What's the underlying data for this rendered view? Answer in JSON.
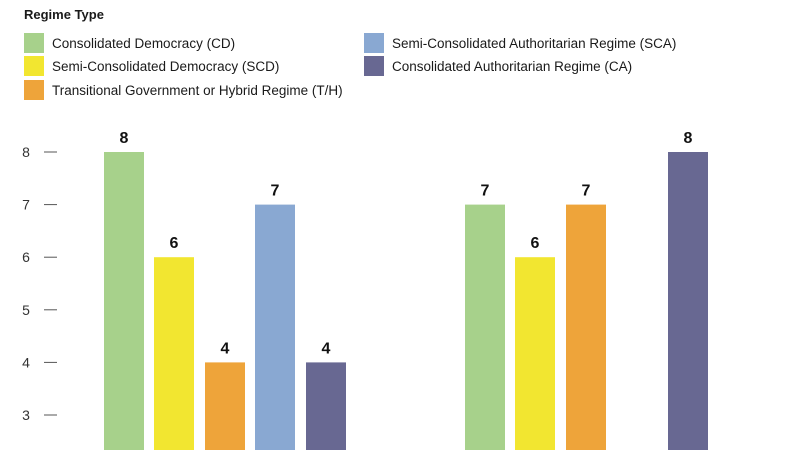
{
  "legend": {
    "title": "Regime Type",
    "items": [
      {
        "label": "Consolidated Democracy (CD)",
        "color": "#a7d18b"
      },
      {
        "label": "Semi-Consolidated Democracy (SCD)",
        "color": "#f2e630"
      },
      {
        "label": "Transitional Government or Hybrid Regime (T/H)",
        "color": "#eea43a"
      },
      {
        "label": "Semi-Consolidated Authoritarian Regime (SCA)",
        "color": "#89a8d2"
      },
      {
        "label": "Consolidated Authoritarian Regime (CA)",
        "color": "#686892"
      }
    ]
  },
  "chart_data": {
    "type": "bar",
    "ylim": [
      2.3,
      8
    ],
    "yticks": [
      "8",
      "7",
      "6",
      "5",
      "4",
      "3"
    ],
    "grid": false,
    "legend_position": "top",
    "groups": [
      {
        "bars": [
          {
            "series": "Consolidated Democracy (CD)",
            "value": 8,
            "label": "8",
            "color": "#a7d18b"
          },
          {
            "series": "Semi-Consolidated Democracy (SCD)",
            "value": 6,
            "label": "6",
            "color": "#f2e630"
          },
          {
            "series": "Transitional Government or Hybrid Regime (T/H)",
            "value": 4,
            "label": "4",
            "color": "#eea43a"
          },
          {
            "series": "Semi-Consolidated Authoritarian Regime (SCA)",
            "value": 7,
            "label": "7",
            "color": "#89a8d2"
          },
          {
            "series": "Consolidated Authoritarian Regime (CA)",
            "value": 4,
            "label": "4",
            "color": "#686892"
          }
        ]
      },
      {
        "bars": [
          {
            "series": "Consolidated Democracy (CD)",
            "value": 7,
            "label": "7",
            "color": "#a7d18b"
          },
          {
            "series": "Semi-Consolidated Democracy (SCD)",
            "value": 6,
            "label": "6",
            "color": "#f2e630"
          },
          {
            "series": "Transitional Government or Hybrid Regime (T/H)",
            "value": 7,
            "label": "7",
            "color": "#eea43a"
          },
          {
            "series": "Consolidated Authoritarian Regime (CA)",
            "value": 8,
            "label": "8",
            "color": "#686892"
          }
        ]
      }
    ]
  }
}
